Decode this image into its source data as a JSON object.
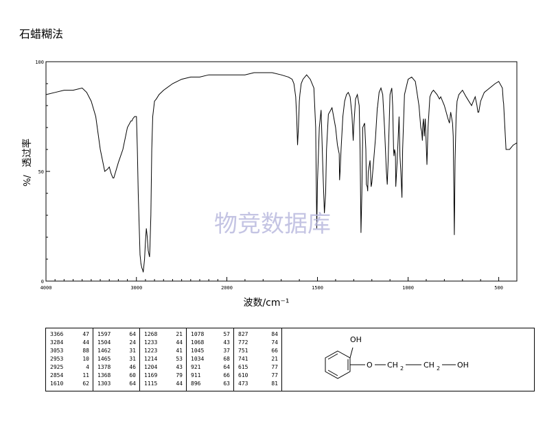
{
  "title": "石蜡糊法",
  "watermark": "物竞数据库",
  "chart_data": {
    "type": "line",
    "xlabel": "波数/cm⁻¹",
    "ylabel": "透过率",
    "ylabel_unit": "%/",
    "xlim": [
      4000,
      400
    ],
    "ylim": [
      0,
      100
    ],
    "x_ticks": [
      4000,
      3000,
      2000,
      1500,
      1000,
      500
    ],
    "y_ticks": [
      0,
      50,
      100
    ],
    "series": [
      {
        "x": [
          4000,
          3900,
          3800,
          3700,
          3600,
          3550,
          3500,
          3450,
          3400,
          3350,
          3320,
          3300,
          3280,
          3260,
          3250,
          3200,
          3150,
          3100,
          3060,
          3050,
          3040,
          3020,
          3000,
          2990,
          2980,
          2960,
          2955,
          2950,
          2940,
          2930,
          2925,
          2920,
          2910,
          2900,
          2890,
          2880,
          2870,
          2860,
          2855,
          2850,
          2840,
          2830,
          2820,
          2800,
          2780,
          2750,
          2700,
          2600,
          2500,
          2400,
          2300,
          2200,
          2100,
          2000,
          1950,
          1900,
          1850,
          1800,
          1750,
          1700,
          1660,
          1640,
          1630,
          1620,
          1615,
          1610,
          1605,
          1600,
          1597,
          1590,
          1580,
          1560,
          1540,
          1520,
          1510,
          1504,
          1500,
          1490,
          1480,
          1470,
          1462,
          1455,
          1450,
          1440,
          1420,
          1400,
          1390,
          1380,
          1378,
          1375,
          1370,
          1360,
          1350,
          1340,
          1330,
          1320,
          1310,
          1303,
          1300,
          1290,
          1280,
          1270,
          1265,
          1260,
          1255,
          1250,
          1240,
          1233,
          1230,
          1225,
          1223,
          1220,
          1214,
          1210,
          1204,
          1200,
          1190,
          1180,
          1170,
          1169,
          1160,
          1150,
          1140,
          1130,
          1120,
          1115,
          1110,
          1100,
          1090,
          1085,
          1080,
          1078,
          1075,
          1070,
          1068,
          1060,
          1050,
          1045,
          1040,
          1034,
          1030,
          1020,
          1000,
          980,
          960,
          940,
          930,
          925,
          921,
          920,
          915,
          911,
          905,
          900,
          896,
          890,
          880,
          870,
          860,
          840,
          827,
          820,
          800,
          780,
          772,
          765,
          755,
          751,
          745,
          741,
          735,
          730,
          720,
          700,
          680,
          650,
          640,
          630,
          620,
          615,
          610,
          600,
          580,
          550,
          520,
          500,
          480,
          475,
          473,
          460,
          440,
          420,
          400
        ],
        "y": [
          85,
          86,
          87,
          87,
          88,
          86,
          82,
          75,
          60,
          50,
          51,
          52,
          49,
          47,
          47,
          54,
          60,
          70,
          73,
          73,
          74,
          75,
          75,
          60,
          40,
          12,
          10,
          8,
          6,
          5,
          4,
          6,
          10,
          18,
          24,
          20,
          14,
          12,
          11,
          16,
          30,
          60,
          75,
          82,
          83,
          85,
          87,
          90,
          92,
          93,
          93,
          94,
          94,
          94,
          94,
          94,
          95,
          95,
          95,
          94,
          93,
          92,
          90,
          84,
          75,
          62,
          70,
          82,
          85,
          90,
          92,
          94,
          92,
          88,
          70,
          24,
          45,
          70,
          78,
          50,
          31,
          40,
          60,
          76,
          79,
          70,
          62,
          58,
          46,
          50,
          60,
          75,
          82,
          85,
          86,
          84,
          76,
          64,
          70,
          83,
          85,
          80,
          60,
          22,
          40,
          70,
          72,
          60,
          44,
          43,
          41,
          50,
          53,
          55,
          43,
          45,
          55,
          65,
          79,
          79,
          86,
          88,
          85,
          70,
          50,
          44,
          55,
          85,
          88,
          80,
          60,
          57,
          60,
          58,
          43,
          55,
          75,
          57,
          50,
          38,
          60,
          85,
          92,
          93,
          91,
          80,
          70,
          68,
          64,
          70,
          74,
          66,
          74,
          62,
          53,
          70,
          84,
          86,
          87,
          85,
          83,
          84,
          80,
          74,
          72,
          77,
          72,
          66,
          21,
          55,
          75,
          82,
          85,
          87,
          84,
          80,
          82,
          84,
          80,
          77,
          77,
          82,
          86,
          88,
          90,
          91,
          88,
          82,
          81,
          60,
          60,
          62,
          63
        ]
      }
    ],
    "peak_table": [
      [
        [
          3366,
          47
        ],
        [
          3284,
          44
        ],
        [
          3053,
          88
        ],
        [
          2953,
          10
        ],
        [
          2925,
          4
        ],
        [
          2854,
          11
        ],
        [
          1610,
          62
        ]
      ],
      [
        [
          1597,
          64
        ],
        [
          1504,
          24
        ],
        [
          1462,
          31
        ],
        [
          1465,
          31
        ],
        [
          1378,
          46
        ],
        [
          1368,
          60
        ],
        [
          1303,
          64
        ]
      ],
      [
        [
          1268,
          21
        ],
        [
          1233,
          44
        ],
        [
          1223,
          41
        ],
        [
          1214,
          53
        ],
        [
          1204,
          43
        ],
        [
          1169,
          79
        ],
        [
          1115,
          44
        ]
      ],
      [
        [
          1078,
          57
        ],
        [
          1068,
          43
        ],
        [
          1045,
          37
        ],
        [
          1034,
          68
        ],
        [
          921,
          64
        ],
        [
          911,
          66
        ],
        [
          896,
          63
        ]
      ],
      [
        [
          827,
          84
        ],
        [
          772,
          74
        ],
        [
          751,
          66
        ],
        [
          741,
          21
        ],
        [
          615,
          77
        ],
        [
          610,
          77
        ],
        [
          473,
          81
        ]
      ]
    ]
  },
  "structure": {
    "oh_top": "OH",
    "ether_o": "O",
    "ch2_1": "CH",
    "ch2_1_sub": "2",
    "ch2_2": "CH",
    "ch2_2_sub": "2",
    "oh_end": "OH"
  }
}
